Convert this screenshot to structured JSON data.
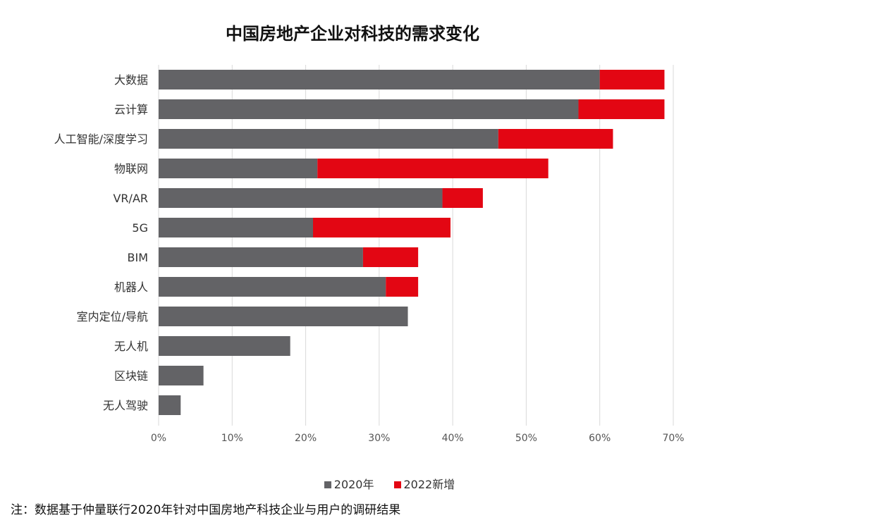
{
  "note": "注：数据基于仲量联行2020年针对中国房地产科技企业与用户的调研结果",
  "chart_data": {
    "type": "bar",
    "orientation": "horizontal",
    "stacked": true,
    "title": "中国房地产企业对科技的需求变化",
    "categories": [
      "大数据",
      "云计算",
      "人工智能/深度学习",
      "物联网",
      "VR/AR",
      "5G",
      "BIM",
      "机器人",
      "室内定位/导航",
      "无人机",
      "区块链",
      "无人驾驶"
    ],
    "series": [
      {
        "name": "2020年",
        "color": "#636366",
        "values": [
          60.0,
          57.1,
          46.2,
          21.6,
          38.6,
          21.0,
          27.8,
          30.9,
          33.9,
          17.9,
          6.1,
          3.0
        ]
      },
      {
        "name": "2022新增",
        "color": "#e30613",
        "values": [
          8.8,
          11.7,
          15.6,
          31.4,
          5.5,
          18.7,
          7.5,
          4.4,
          0,
          0,
          0,
          0
        ]
      }
    ],
    "xlim": [
      0,
      70
    ],
    "xticks": [
      "0%",
      "10%",
      "20%",
      "30%",
      "40%",
      "50%",
      "60%",
      "70%"
    ],
    "grid": "vertical",
    "legend": "bottom"
  }
}
